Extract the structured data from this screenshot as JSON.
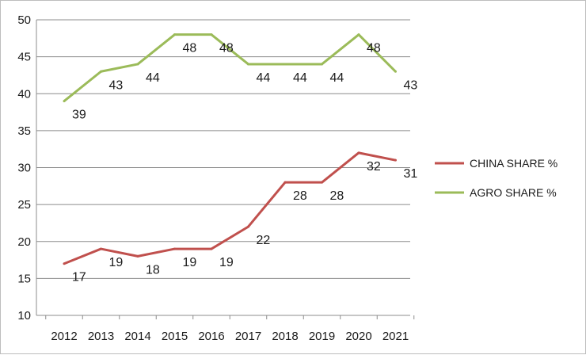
{
  "chart_data": {
    "type": "line",
    "title": "",
    "xlabel": "",
    "ylabel": "",
    "categories": [
      "2012",
      "2013",
      "2014",
      "2015",
      "2016",
      "2017",
      "2018",
      "2019",
      "2020",
      "2021"
    ],
    "ylim": [
      10,
      50
    ],
    "yticks": [
      "10",
      "15",
      "20",
      "25",
      "30",
      "35",
      "40",
      "45",
      "50"
    ],
    "grid": "horizontal",
    "legend_position": "right",
    "series": [
      {
        "name": "CHINA SHARE %",
        "color": "#c0504d",
        "values": [
          17,
          19,
          18,
          19,
          19,
          22,
          28,
          28,
          32,
          31
        ],
        "labels": [
          "17",
          "19",
          "18",
          "19",
          "19",
          "22",
          "28",
          "28",
          "32",
          "31"
        ]
      },
      {
        "name": "AGRO SHARE %",
        "color": "#9bbb59",
        "values": [
          39,
          43,
          44,
          48,
          48,
          44,
          44,
          44,
          48,
          43
        ],
        "labels": [
          "39",
          "43",
          "44",
          "48",
          "48",
          "44",
          "44",
          "44",
          "48",
          "43"
        ]
      }
    ]
  }
}
